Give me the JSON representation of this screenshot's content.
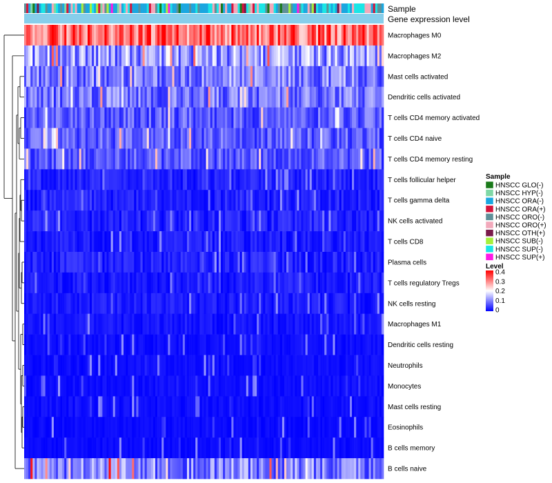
{
  "chart_data": {
    "type": "heatmap",
    "title": "",
    "annotations": {
      "column_tracks": [
        "Sample",
        "Gene expression level"
      ],
      "gene_expression_color": "#87ceeb"
    },
    "rows": [
      "Macrophages M0",
      "Macrophages M2",
      "Mast cells activated",
      "Dendritic cells activated",
      "T cells CD4 memory activated",
      "T cells CD4 naive",
      "T cells CD4 memory resting",
      "T cells follicular helper",
      "T cells gamma delta",
      "NK cells activated",
      "T cells CD8",
      "Plasma cells",
      "T cells regulatory  Tregs",
      "NK cells resting",
      "Macrophages M1",
      "Dendritic cells resting",
      "Neutrophils",
      "Monocytes",
      "Mast cells resting",
      "Eosinophils",
      "B cells memory",
      "B cells naive"
    ],
    "row_mean_levels": [
      0.32,
      0.12,
      0.1,
      0.09,
      0.07,
      0.07,
      0.07,
      0.05,
      0.05,
      0.05,
      0.04,
      0.05,
      0.04,
      0.04,
      0.03,
      0.02,
      0.02,
      0.02,
      0.02,
      0.015,
      0.015,
      0.1
    ],
    "n_samples": 170,
    "sample_legend": {
      "title": "Sample",
      "items": [
        {
          "label": "HNSCC GLO(-)",
          "color": "#1a7a1a"
        },
        {
          "label": "HNSCC HYP(-)",
          "color": "#7fd8a6"
        },
        {
          "label": "HNSCC ORA(-)",
          "color": "#1aa7e0"
        },
        {
          "label": "HNSCC ORA(+)",
          "color": "#d6153c"
        },
        {
          "label": "HNSCC ORO(-)",
          "color": "#5f8f98"
        },
        {
          "label": "HNSCC ORO(+)",
          "color": "#f2a9bb"
        },
        {
          "label": "HNSCC OTH(+)",
          "color": "#7a1a4a"
        },
        {
          "label": "HNSCC SUB(-)",
          "color": "#a6f03c"
        },
        {
          "label": "HNSCC SUP(-)",
          "color": "#1ae6e6"
        },
        {
          "label": "HNSCC SUP(+)",
          "color": "#ff1ae6"
        }
      ]
    },
    "level_legend": {
      "title": "Level",
      "ticks": [
        "0.4",
        "0.3",
        "0.2",
        "0.1",
        "0"
      ],
      "range": [
        0,
        0.4
      ],
      "colors": {
        "low": "#0000ff",
        "mid": "#ffffff",
        "high": "#ff0000"
      }
    }
  }
}
